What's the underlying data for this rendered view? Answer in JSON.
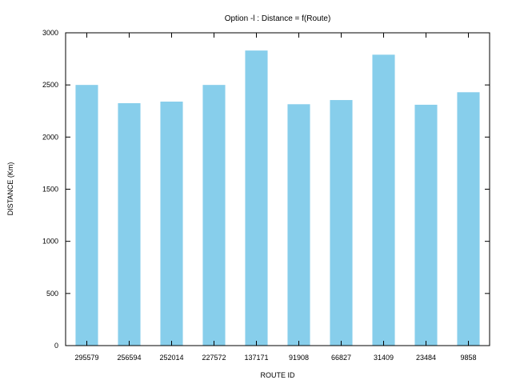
{
  "chart_data": {
    "type": "bar",
    "title": "Option -l : Distance = f(Route)",
    "xlabel": "ROUTE ID",
    "ylabel": "DISTANCE (Km)",
    "categories": [
      "295579",
      "256594",
      "252014",
      "227572",
      "137171",
      "91908",
      "66827",
      "31409",
      "23484",
      "9858"
    ],
    "values": [
      2500,
      2325,
      2340,
      2500,
      2830,
      2315,
      2355,
      2790,
      2310,
      2430
    ],
    "ylim": [
      0,
      3000
    ],
    "yticks": [
      0,
      500,
      1000,
      1500,
      2000,
      2500,
      3000
    ],
    "grid": false,
    "legend": "none",
    "colors": {
      "bar": "#87ceeb",
      "axis": "#000000"
    }
  }
}
